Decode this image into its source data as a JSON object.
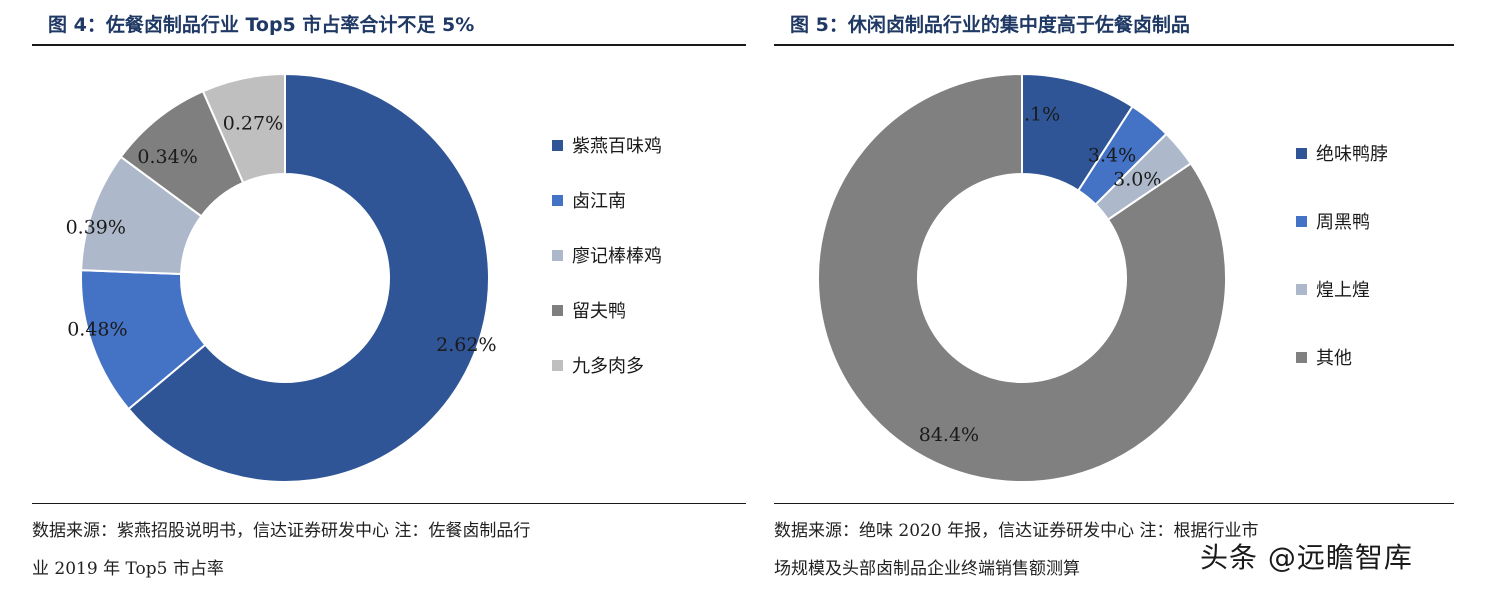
{
  "figures": [
    {
      "title": "图 4：佐餐卤制品行业 Top5 市占率合计不足 5%",
      "source_line1": "数据来源：紫燕招股说明书，信达证券研发中心  注：佐餐卤制品行",
      "source_line2": "业 2019 年 Top5 市占率"
    },
    {
      "title": "图 5：休闲卤制品行业的集中度高于佐餐卤制品",
      "source_line1": "数据来源：绝味 2020 年报，信达证券研发中心   注：根据行业市",
      "source_line2": "场规模及头部卤制品企业终端销售额测算"
    }
  ],
  "watermark": "头条 @远瞻智库",
  "chart_data": [
    {
      "type": "pie",
      "donut": true,
      "title": "",
      "legend_position": "right",
      "series": [
        {
          "name": "紫燕百味鸡",
          "value": 2.62,
          "label": "2.62%",
          "color": "#2f5597"
        },
        {
          "name": "卤江南",
          "value": 0.48,
          "label": "0.48%",
          "color": "#4472c4"
        },
        {
          "name": "廖记棒棒鸡",
          "value": 0.39,
          "label": "0.39%",
          "color": "#adb9ca"
        },
        {
          "name": "留夫鸭",
          "value": 0.34,
          "label": "0.34%",
          "color": "#7f7f7f"
        },
        {
          "name": "九多肉多",
          "value": 0.27,
          "label": "0.27%",
          "color": "#bfbfbf"
        }
      ]
    },
    {
      "type": "pie",
      "donut": true,
      "title": "",
      "legend_position": "right",
      "series": [
        {
          "name": "绝味鸭脖",
          "value": 9.1,
          "label": "9.1%",
          "color": "#2f5597"
        },
        {
          "name": "周黑鸭",
          "value": 3.4,
          "label": "3.4%",
          "color": "#4472c4"
        },
        {
          "name": "煌上煌",
          "value": 3.0,
          "label": "3.0%",
          "color": "#adb9ca"
        },
        {
          "name": "其他",
          "value": 84.4,
          "label": "84.4%",
          "color": "#808080"
        }
      ]
    }
  ]
}
